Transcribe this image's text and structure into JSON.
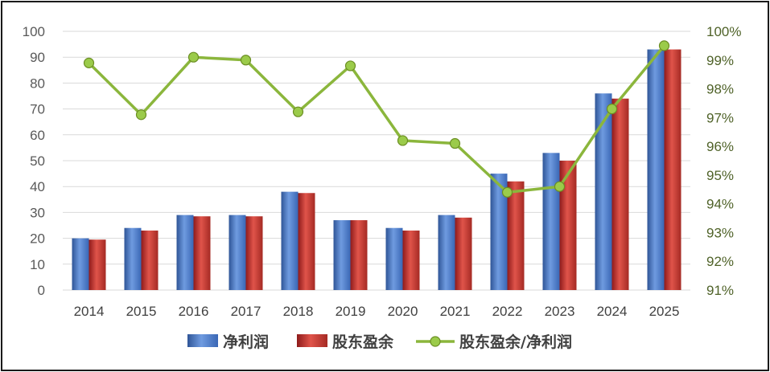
{
  "chart_data": {
    "type": "bar",
    "categories": [
      "2014",
      "2015",
      "2016",
      "2017",
      "2018",
      "2019",
      "2020",
      "2021",
      "2022",
      "2023",
      "2024",
      "2025"
    ],
    "series": [
      {
        "name": "净利润",
        "kind": "bar",
        "axis": "left",
        "color": "#4472c4",
        "values": [
          20,
          24,
          29,
          29,
          38,
          27,
          24,
          29,
          45,
          53,
          76,
          93
        ]
      },
      {
        "name": "股东盈余",
        "kind": "bar",
        "axis": "left",
        "color": "#c0392b",
        "values": [
          19.5,
          23,
          28.5,
          28.5,
          37.5,
          27,
          23,
          28,
          42,
          50,
          74,
          93
        ]
      },
      {
        "name": "股东盈余/净利润",
        "kind": "line",
        "axis": "right",
        "color": "#8bb63c",
        "values": [
          98.9,
          97.1,
          99.1,
          99.0,
          97.2,
          98.8,
          96.2,
          96.1,
          94.4,
          94.6,
          97.3,
          99.5
        ]
      }
    ],
    "ylim": [
      0,
      100
    ],
    "y_ticks": [
      "0",
      "10",
      "20",
      "30",
      "40",
      "50",
      "60",
      "70",
      "80",
      "90",
      "100"
    ],
    "y2lim": [
      91,
      100
    ],
    "y2_ticks": [
      "91%",
      "92%",
      "93%",
      "94%",
      "95%",
      "96%",
      "97%",
      "98%",
      "99%",
      "100%"
    ],
    "grid": true,
    "legend_position": "bottom"
  }
}
